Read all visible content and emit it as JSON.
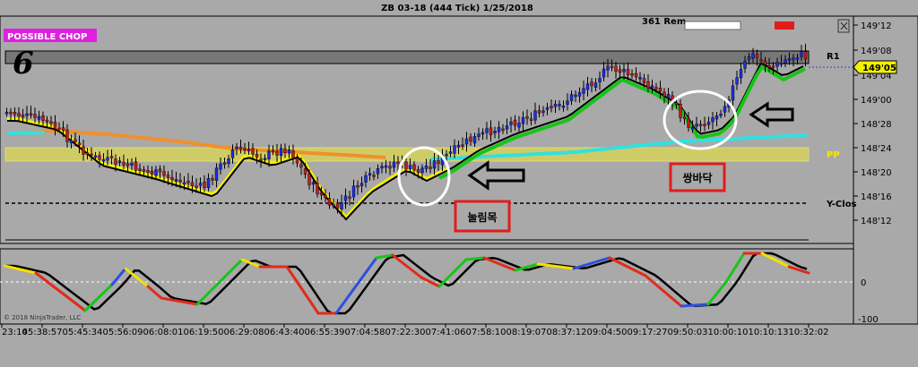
{
  "header": {
    "title": "ZB 03-18 (444 Tick)  1/25/2018",
    "counter": "361 Rem",
    "badge": "POSSIBLE CHOP",
    "number": "6"
  },
  "chart_data": {
    "type": "candlestick",
    "price_axis": {
      "ticks": [
        "149'12",
        "149'08",
        "149'04",
        "149'00",
        "148'28",
        "148'24",
        "148'20",
        "148'16",
        "148'12"
      ],
      "current_price": "149'05"
    },
    "levels": [
      {
        "label": "R1"
      },
      {
        "label": "PP"
      },
      {
        "label": "Y-Clos"
      }
    ],
    "time_axis": [
      "23:14",
      "05:38:57",
      "05:45:34",
      "05:56:09",
      "06:08:01",
      "06:19:50",
      "06:29:08",
      "06:43:40",
      "06:55:39",
      "07:04:58",
      "07:22:30",
      "07:41:06",
      "07:58:10",
      "08:19:07",
      "08:37:12",
      "09:04:50",
      "09:17:27",
      "09:50:03",
      "10:00:10",
      "10:10:13",
      "10:32:02"
    ],
    "annotations": [
      {
        "text": "눌림목"
      },
      {
        "text": "쌍바닥"
      }
    ],
    "oscillator": {
      "ticks": [
        "0",
        "-100"
      ]
    },
    "copyright": "© 2018 NinjaTrader, LLC"
  }
}
